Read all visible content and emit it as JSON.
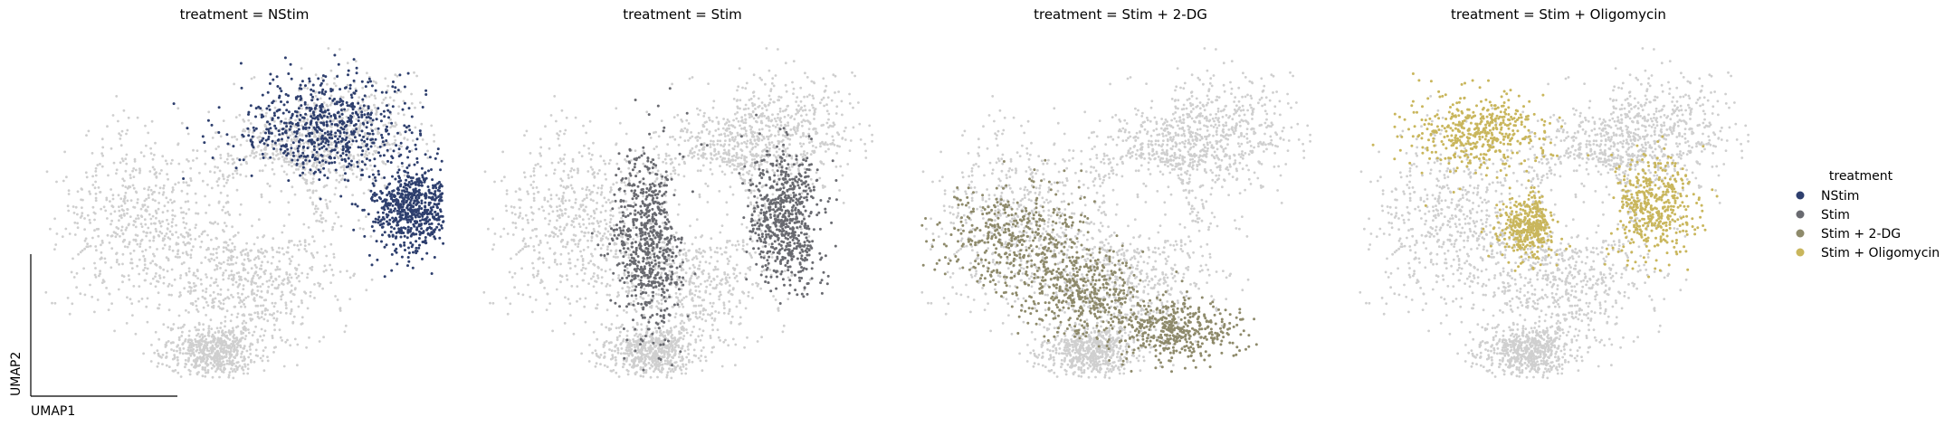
{
  "chart_data": {
    "type": "scatter",
    "facet_variable": "treatment",
    "panels": [
      {
        "title": "treatment = NStim",
        "series": "NStim"
      },
      {
        "title": "treatment = Stim",
        "series": "Stim"
      },
      {
        "title": "treatment = Stim + 2-DG",
        "series": "Stim + 2-DG"
      },
      {
        "title": "treatment = Stim + Oligomycin",
        "series": "Stim + Oligomycin"
      }
    ],
    "xlabel": "UMAP1",
    "ylabel": "UMAP2",
    "legend": {
      "title": "treatment",
      "position": "right",
      "entries": [
        "NStim",
        "Stim",
        "Stim + 2-DG",
        "Stim + Oligomycin"
      ]
    },
    "colors": {
      "NStim": "#2e3f6e",
      "Stim": "#696a70",
      "Stim + 2-DG": "#8e8a6b",
      "Stim + Oligomycin": "#c9b65c",
      "background": "#cfcfcf"
    },
    "xlim": [
      0,
      10
    ],
    "ylim": [
      0,
      10
    ],
    "grid": false,
    "background_cloud": [
      {
        "cx": 2.5,
        "cy": 4.6,
        "rx": 2.2,
        "ry": 2.6
      },
      {
        "cx": 5.3,
        "cy": 3.0,
        "rx": 2.1,
        "ry": 2.3
      },
      {
        "cx": 4.2,
        "cy": 0.8,
        "rx": 1.1,
        "ry": 0.8
      },
      {
        "cx": 7.3,
        "cy": 7.3,
        "rx": 2.1,
        "ry": 1.7
      },
      {
        "cx": 5.8,
        "cy": 6.0,
        "rx": 1.4,
        "ry": 1.6
      }
    ],
    "clusters": {
      "NStim": [
        {
          "cx": 7.0,
          "cy": 7.4,
          "rx": 2.2,
          "ry": 1.6
        },
        {
          "cx": 9.2,
          "cy": 5.0,
          "rx": 1.0,
          "ry": 1.3
        }
      ],
      "Stim": [
        {
          "cx": 4.2,
          "cy": 4.2,
          "rx": 0.9,
          "ry": 2.8
        },
        {
          "cx": 7.6,
          "cy": 4.7,
          "rx": 0.9,
          "ry": 2.0
        }
      ],
      "Stim + 2-DG": [
        {
          "cx": 2.3,
          "cy": 4.2,
          "rx": 2.0,
          "ry": 1.6
        },
        {
          "cx": 4.0,
          "cy": 2.6,
          "rx": 1.6,
          "ry": 1.3
        },
        {
          "cx": 6.4,
          "cy": 1.4,
          "rx": 1.6,
          "ry": 0.9
        }
      ],
      "Stim + Oligomycin": [
        {
          "cx": 3.0,
          "cy": 7.3,
          "rx": 1.7,
          "ry": 1.2
        },
        {
          "cx": 4.3,
          "cy": 4.5,
          "rx": 0.8,
          "ry": 0.9
        },
        {
          "cx": 7.3,
          "cy": 5.1,
          "rx": 1.1,
          "ry": 1.5
        }
      ]
    }
  }
}
